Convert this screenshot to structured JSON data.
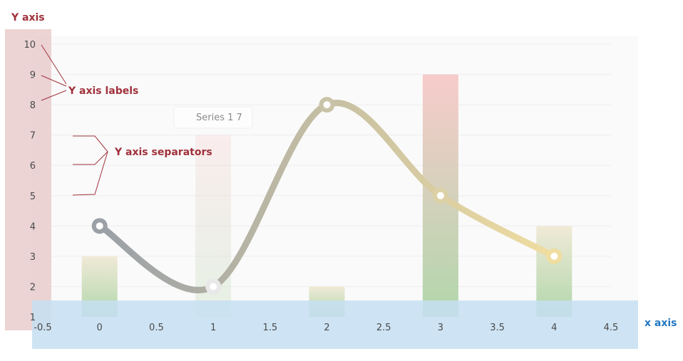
{
  "chart_data": {
    "type": "bar",
    "x_ticks": [
      "-0.5",
      "0",
      "0.5",
      "1",
      "1.5",
      "2",
      "2.5",
      "3",
      "3.5",
      "4",
      "4.5"
    ],
    "y_ticks": [
      "1",
      "2",
      "3",
      "4",
      "5",
      "6",
      "7",
      "8",
      "9",
      "10"
    ],
    "xlim": [
      -0.5,
      4.5
    ],
    "ylim": [
      1,
      10
    ],
    "bars": [
      {
        "x": 0,
        "value": 3
      },
      {
        "x": 1,
        "value": 7
      },
      {
        "x": 2,
        "value": 2
      },
      {
        "x": 3,
        "value": 9
      },
      {
        "x": 4,
        "value": 4
      }
    ],
    "line": {
      "points": [
        [
          0,
          4
        ],
        [
          1,
          2
        ],
        [
          2,
          8
        ],
        [
          3,
          5
        ],
        [
          4,
          3
        ]
      ]
    },
    "tooltip": {
      "label": "Series 1 7"
    },
    "annotations": {
      "y_axis": "Y axis",
      "y_axis_labels": "Y axis labels",
      "y_axis_separators": "Y axis separators",
      "x_axis": "x axis"
    },
    "colors": {
      "annotation_red": "#a0323c",
      "annotation_blue": "#2478c2",
      "y_axis_highlight": "#e7c9cb",
      "x_axis_highlight": "#c6dff2",
      "bar_top_warm": "#f7c6c6",
      "bar_top_neutral": "#efe8d3",
      "bar_bottom_green": "#a9d3a3",
      "line_start": "#9aa0a6",
      "line_end": "#f0dda0"
    },
    "grid": true
  }
}
